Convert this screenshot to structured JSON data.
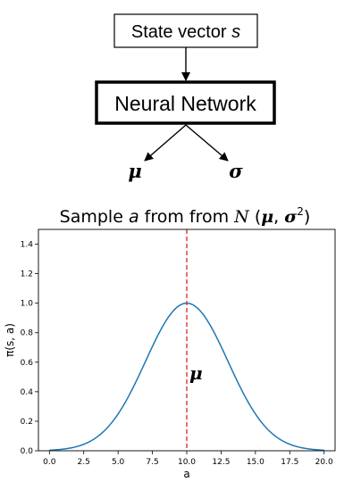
{
  "diagram": {
    "state_box": {
      "label": "State vector ",
      "var": "s"
    },
    "network_box": {
      "label": "Neural Network"
    },
    "outputs": {
      "mu": "μ",
      "sigma": "σ"
    }
  },
  "chart_data": {
    "type": "line",
    "title": {
      "prefix": "Sample ",
      "var": "a",
      "middle": " from from ",
      "dist": "N",
      "open": " (",
      "mu": "μ",
      "comma": ", ",
      "sigma": "σ",
      "sup": "2",
      "close": ")"
    },
    "xlabel": "a",
    "ylabel": "π(s, a)",
    "xlim": [
      -0.8,
      20.8
    ],
    "ylim": [
      0.0,
      1.5
    ],
    "xticks": [
      0.0,
      2.5,
      5.0,
      7.5,
      10.0,
      12.5,
      15.0,
      17.5,
      20.0
    ],
    "xtick_labels": [
      "0.0",
      "2.5",
      "5.0",
      "7.5",
      "10.0",
      "12.5",
      "15.0",
      "17.5",
      "20.0"
    ],
    "yticks": [
      0.0,
      0.2,
      0.4,
      0.6,
      0.8,
      1.0,
      1.2,
      1.4
    ],
    "ytick_labels": [
      "0.0",
      "0.2",
      "0.4",
      "0.6",
      "0.8",
      "1.0",
      "1.2",
      "1.4"
    ],
    "series": [
      {
        "mean": 10.0,
        "std": 3.0,
        "peak": 1.0,
        "x_range": [
          0.0,
          20.0
        ],
        "color": "#1f77b4"
      }
    ],
    "vline": {
      "x": 10.0,
      "color": "#d62728",
      "style": "dashed"
    },
    "annotation": {
      "text": "μ",
      "x": 10.0,
      "y": 0.52
    },
    "grid": false
  }
}
